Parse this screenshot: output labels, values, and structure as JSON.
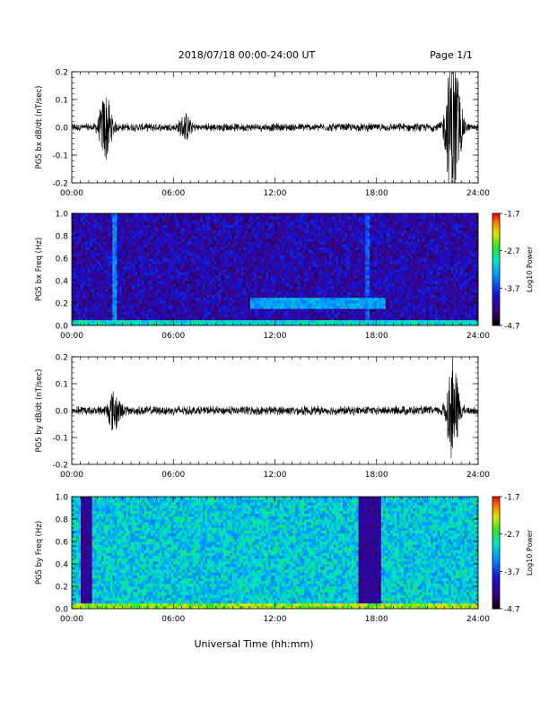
{
  "header": {
    "title": "2018/07/18  00:00-24:00 UT",
    "page_label": "Page 1/1"
  },
  "xlabel": "Universal Time (hh:mm)",
  "chart_data": [
    {
      "type": "line",
      "ylabel": "PG5 bx dB/dt (nT/sec)",
      "x_ticks": [
        "00:00",
        "06:00",
        "12:00",
        "18:00",
        "24:00"
      ],
      "xlim": [
        0,
        24
      ],
      "ylim": [
        -0.2,
        0.2
      ],
      "y_ticks": [
        "-0.2",
        "-0.1",
        "0.0",
        "0.1",
        "0.2"
      ],
      "baseline_amplitude": 0.012,
      "bursts": [
        {
          "t": 2.0,
          "amp": 0.12
        },
        {
          "t": 6.7,
          "amp": 0.04
        },
        {
          "t": 22.4,
          "amp": 0.2
        },
        {
          "t": 22.7,
          "amp": 0.14
        }
      ],
      "color": "#000000"
    },
    {
      "type": "heatmap",
      "ylabel": "PG5 bx Freq (Hz)",
      "x_ticks": [
        "00:00",
        "06:00",
        "12:00",
        "18:00",
        "24:00"
      ],
      "xlim": [
        0,
        24
      ],
      "ylim": [
        0.0,
        1.0
      ],
      "y_ticks": [
        "0.0",
        "0.2",
        "0.4",
        "0.6",
        "0.8",
        "1.0"
      ],
      "colorbar": {
        "label": "Log10 Power",
        "min": -4.7,
        "max": -1.7,
        "ticks": [
          "-1.7",
          "-2.7",
          "-3.7",
          "-4.7"
        ]
      },
      "background_level": -4.1,
      "features": [
        {
          "kind": "band",
          "t_start": 10.5,
          "t_end": 18.5,
          "f": 0.2,
          "level": -3.3
        },
        {
          "kind": "streak",
          "t": 2.5,
          "level": -3.4
        },
        {
          "kind": "streak",
          "t": 17.5,
          "level": -3.6
        },
        {
          "kind": "lowfreq",
          "level": -3.0
        }
      ]
    },
    {
      "type": "line",
      "ylabel": "PG5 by dB/dt (nT/sec)",
      "x_ticks": [
        "00:00",
        "06:00",
        "12:00",
        "18:00",
        "24:00"
      ],
      "xlim": [
        0,
        24
      ],
      "ylim": [
        -0.2,
        0.2
      ],
      "y_ticks": [
        "-0.2",
        "-0.1",
        "0.0",
        "0.1",
        "0.2"
      ],
      "baseline_amplitude": 0.014,
      "bursts": [
        {
          "t": 2.5,
          "amp": 0.07
        },
        {
          "t": 22.5,
          "amp": 0.18
        }
      ],
      "color": "#000000"
    },
    {
      "type": "heatmap",
      "ylabel": "PG5 by Freq (Hz)",
      "x_ticks": [
        "00:00",
        "06:00",
        "12:00",
        "18:00",
        "24:00"
      ],
      "xlim": [
        0,
        24
      ],
      "ylim": [
        0.0,
        1.0
      ],
      "y_ticks": [
        "0.0",
        "0.2",
        "0.4",
        "0.6",
        "0.8",
        "1.0"
      ],
      "colorbar": {
        "label": "Log10 Power",
        "min": -4.7,
        "max": -1.7,
        "ticks": [
          "-1.7",
          "-2.7",
          "-3.7",
          "-4.7"
        ]
      },
      "background_level": -3.1,
      "features": [
        {
          "kind": "dark",
          "t_start": 0.5,
          "t_end": 1.2,
          "level": -4.2
        },
        {
          "kind": "dark",
          "t_start": 17.0,
          "t_end": 18.2,
          "level": -4.2
        },
        {
          "kind": "lowfreq",
          "level": -2.4
        }
      ]
    }
  ]
}
